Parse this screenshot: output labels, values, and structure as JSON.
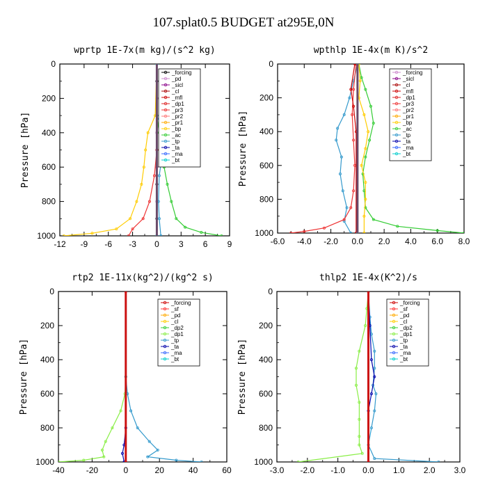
{
  "figure_title": "107.splat0.5  BUDGET at295E,0N",
  "chart_data": [
    {
      "type": "line",
      "title": "wprtp  1E-7x(m kg)/(s^2 kg)",
      "ylabel": "Pressure [hPa]",
      "xlim": [
        -12,
        9
      ],
      "ylim": [
        1000,
        0
      ],
      "xticks": [
        "-12",
        "-9",
        "-6",
        "-3",
        "0",
        "3",
        "6",
        "9"
      ],
      "xtick_values": [
        -12,
        -9,
        -6,
        -3,
        0,
        3,
        6,
        9
      ],
      "yticks": [
        "0",
        "200",
        "400",
        "600",
        "800",
        "1000"
      ],
      "ytick_values": [
        0,
        200,
        400,
        600,
        800,
        1000
      ],
      "legend": [
        "_forcing",
        "_pd",
        "_sicl",
        "_cl",
        "_mfl",
        "_dp1",
        "_pr3",
        "_pr2",
        "_pr1",
        "_bp",
        "_ac",
        "_tp",
        "_ta",
        "_ma",
        "_bt"
      ],
      "legend_colors": [
        "#000000",
        "#cc88cc",
        "#880088",
        "#aa0000",
        "#cc0000",
        "#dd2222",
        "#ee3333",
        "#ff7777",
        "#ffaa00",
        "#ffcc00",
        "#33cc33",
        "#3399cc",
        "#0000aa",
        "#3366ff",
        "#00cccc"
      ],
      "series": [
        {
          "name": "_forcing",
          "color": "#000000",
          "points": [
            [
              0,
              0
            ],
            [
              0,
              100
            ],
            [
              0,
              200
            ],
            [
              0,
              300
            ],
            [
              0,
              400
            ],
            [
              0,
              500
            ],
            [
              0,
              600
            ],
            [
              0,
              700
            ],
            [
              0,
              800
            ],
            [
              0,
              900
            ],
            [
              0,
              1000
            ]
          ]
        },
        {
          "name": "_pd",
          "color": "#cc88cc",
          "points": [
            [
              0,
              0
            ],
            [
              0,
              200
            ],
            [
              0,
              400
            ],
            [
              0,
              600
            ],
            [
              0,
              800
            ],
            [
              0,
              1000
            ]
          ]
        },
        {
          "name": "_ac",
          "color": "#33cc33",
          "points": [
            [
              0,
              0
            ],
            [
              0,
              300
            ],
            [
              0.3,
              400
            ],
            [
              0.6,
              500
            ],
            [
              0.9,
              600
            ],
            [
              1.3,
              700
            ],
            [
              1.8,
              800
            ],
            [
              2.4,
              900
            ],
            [
              3.5,
              950
            ],
            [
              5.5,
              980
            ],
            [
              8,
              1000
            ]
          ]
        },
        {
          "name": "_tp",
          "color": "#3399cc",
          "points": [
            [
              0,
              0
            ],
            [
              0,
              300
            ],
            [
              0.7,
              380
            ],
            [
              0.8,
              450
            ],
            [
              0.6,
              550
            ],
            [
              0.3,
              650
            ],
            [
              0.2,
              800
            ],
            [
              0.3,
              900
            ],
            [
              0.5,
              1000
            ]
          ]
        },
        {
          "name": "_pr1",
          "color": "#ffcc00",
          "points": [
            [
              0,
              0
            ],
            [
              -0.2,
              300
            ],
            [
              -1.1,
              400
            ],
            [
              -1.4,
              500
            ],
            [
              -1.6,
              600
            ],
            [
              -1.9,
              700
            ],
            [
              -2.5,
              800
            ],
            [
              -3.3,
              900
            ],
            [
              -5,
              960
            ],
            [
              -8,
              985
            ],
            [
              -11.5,
              1000
            ]
          ]
        },
        {
          "name": "_pr3",
          "color": "#ee3333",
          "points": [
            [
              0,
              0
            ],
            [
              0,
              500
            ],
            [
              -0.3,
              650
            ],
            [
              -0.9,
              800
            ],
            [
              -1.7,
              900
            ],
            [
              -3,
              960
            ],
            [
              -3.5,
              1000
            ]
          ]
        },
        {
          "name": "_ma",
          "color": "#3366ff",
          "points": [
            [
              0,
              0
            ],
            [
              0,
              1000
            ]
          ]
        },
        {
          "name": "_bt",
          "color": "#00cccc",
          "points": [
            [
              0,
              0
            ],
            [
              0,
              1000
            ]
          ]
        }
      ]
    },
    {
      "type": "line",
      "title": "wpthlp  1E-4x(m K)/s^2",
      "ylabel": "Pressure [hPa]",
      "xlim": [
        -6,
        8
      ],
      "ylim": [
        1000,
        0
      ],
      "xticks": [
        "-6.0",
        "-4.0",
        "-2.0",
        "0.0",
        "2.0",
        "4.0",
        "6.0",
        "8.0"
      ],
      "xtick_values": [
        -6,
        -4,
        -2,
        0,
        2,
        4,
        6,
        8
      ],
      "yticks": [
        "0",
        "200",
        "400",
        "600",
        "800",
        "1000"
      ],
      "ytick_values": [
        0,
        200,
        400,
        600,
        800,
        1000
      ],
      "legend": [
        "_forcing",
        "_sicl",
        "_cl",
        "_mfl",
        "_dp1",
        "_pr3",
        "_pr2",
        "_pr1",
        "_bp",
        "_ac",
        "_tp",
        "_ta",
        "_ma",
        "_bt"
      ],
      "legend_colors": [
        "#cc88cc",
        "#880088",
        "#aa0000",
        "#cc0000",
        "#dd2222",
        "#ee3333",
        "#ff7777",
        "#ffaa00",
        "#ffcc00",
        "#33cc33",
        "#3399cc",
        "#0000aa",
        "#3366ff",
        "#00cccc"
      ],
      "series": [
        {
          "name": "_forcing",
          "color": "#cc88cc",
          "points": [
            [
              0,
              0
            ],
            [
              0,
              1000
            ]
          ]
        },
        {
          "name": "_ac",
          "color": "#33cc33",
          "points": [
            [
              0.1,
              0
            ],
            [
              0.3,
              80
            ],
            [
              0.6,
              150
            ],
            [
              1,
              250
            ],
            [
              1.2,
              350
            ],
            [
              0.9,
              450
            ],
            [
              0.6,
              550
            ],
            [
              0.4,
              650
            ],
            [
              0.5,
              750
            ],
            [
              0.6,
              850
            ],
            [
              1.2,
              920
            ],
            [
              3,
              960
            ],
            [
              6,
              985
            ],
            [
              8,
              1000
            ]
          ]
        },
        {
          "name": "_tp",
          "color": "#3399cc",
          "points": [
            [
              0,
              0
            ],
            [
              -0.3,
              100
            ],
            [
              -0.6,
              200
            ],
            [
              -1,
              300
            ],
            [
              -1.5,
              380
            ],
            [
              -1.6,
              450
            ],
            [
              -1.2,
              550
            ],
            [
              -1.3,
              650
            ],
            [
              -1.1,
              750
            ],
            [
              -0.8,
              850
            ],
            [
              -1,
              930
            ],
            [
              -0.5,
              1000
            ]
          ]
        },
        {
          "name": "_pr1",
          "color": "#ffcc00",
          "points": [
            [
              0.1,
              0
            ],
            [
              0.2,
              100
            ],
            [
              0.1,
              200
            ],
            [
              0.5,
              300
            ],
            [
              0.8,
              400
            ],
            [
              0.6,
              500
            ],
            [
              0.3,
              600
            ],
            [
              0.6,
              700
            ],
            [
              0.6,
              800
            ],
            [
              0.5,
              900
            ],
            [
              0.5,
              1000
            ]
          ]
        },
        {
          "name": "_pr3",
          "color": "#ee3333",
          "points": [
            [
              -0.1,
              0
            ],
            [
              -0.3,
              150
            ],
            [
              -0.4,
              300
            ],
            [
              -0.3,
              450
            ],
            [
              -0.2,
              600
            ],
            [
              -0.3,
              750
            ],
            [
              -0.5,
              850
            ],
            [
              -1,
              920
            ],
            [
              -2.5,
              970
            ],
            [
              -4,
              990
            ],
            [
              -5,
              1000
            ]
          ]
        },
        {
          "name": "_mfl",
          "color": "#cc0000",
          "points": [
            [
              -0.2,
              0
            ],
            [
              -0.5,
              150
            ],
            [
              -0.3,
              250
            ],
            [
              -0.1,
              400
            ],
            [
              -0.1,
              1000
            ]
          ]
        },
        {
          "name": "_bt",
          "color": "#00cccc",
          "points": [
            [
              0,
              0
            ],
            [
              0,
              1000
            ]
          ]
        }
      ]
    },
    {
      "type": "line",
      "title": "rtp2  1E-11x(kg^2)/(kg^2 s)",
      "ylabel": "Pressure [hPa]",
      "xlim": [
        -40,
        60
      ],
      "ylim": [
        1000,
        0
      ],
      "xticks": [
        "-40",
        "-20",
        "0",
        "20",
        "40",
        "60"
      ],
      "xtick_values": [
        -40,
        -20,
        0,
        20,
        40,
        60
      ],
      "yticks": [
        "0",
        "200",
        "400",
        "600",
        "800",
        "1000"
      ],
      "ytick_values": [
        0,
        200,
        400,
        600,
        800,
        1000
      ],
      "legend": [
        "_forcing",
        "_sf",
        "_pd",
        "_cl",
        "_dp2",
        "_dp1",
        "_tp",
        "_ta",
        "_ma",
        "_bt"
      ],
      "legend_colors": [
        "#cc0000",
        "#ff3333",
        "#ffaa00",
        "#ffcc00",
        "#33cc33",
        "#88ee44",
        "#3399cc",
        "#0000aa",
        "#3366ff",
        "#00cccc"
      ],
      "series": [
        {
          "name": "_dp1",
          "color": "#88ee44",
          "points": [
            [
              0,
              0
            ],
            [
              0,
              500
            ],
            [
              -0.5,
              600
            ],
            [
              -3,
              700
            ],
            [
              -8,
              800
            ],
            [
              -12,
              880
            ],
            [
              -14,
              930
            ],
            [
              -13,
              970
            ],
            [
              -25,
              990
            ],
            [
              -40,
              1000
            ]
          ]
        },
        {
          "name": "_tp",
          "color": "#3399cc",
          "points": [
            [
              0,
              0
            ],
            [
              0,
              500
            ],
            [
              1,
              600
            ],
            [
              3,
              700
            ],
            [
              7,
              800
            ],
            [
              14,
              880
            ],
            [
              19,
              930
            ],
            [
              13,
              970
            ],
            [
              30,
              990
            ],
            [
              45,
              1000
            ]
          ]
        },
        {
          "name": "_ta",
          "color": "#0000aa",
          "points": [
            [
              0,
              0
            ],
            [
              0,
              800
            ],
            [
              -1,
              900
            ],
            [
              -2,
              950
            ],
            [
              -1,
              1000
            ]
          ]
        },
        {
          "name": "_forcing",
          "color": "#cc0000",
          "points": [
            [
              0,
              0
            ],
            [
              0,
              1000
            ]
          ]
        },
        {
          "name": "_sf",
          "color": "#ff3333",
          "points": [
            [
              0,
              0
            ],
            [
              0,
              1000
            ]
          ]
        }
      ]
    },
    {
      "type": "line",
      "title": "thlp2  1E-4x(K^2)/s",
      "ylabel": "Pressure [hPa]",
      "xlim": [
        -3,
        3
      ],
      "ylim": [
        1000,
        0
      ],
      "xticks": [
        "-3.0",
        "-2.0",
        "-1.0",
        "0.0",
        "1.0",
        "2.0",
        "3.0"
      ],
      "xtick_values": [
        -3,
        -2,
        -1,
        0,
        1,
        2,
        3
      ],
      "yticks": [
        "0",
        "200",
        "400",
        "600",
        "800",
        "1000"
      ],
      "ytick_values": [
        0,
        200,
        400,
        600,
        800,
        1000
      ],
      "legend": [
        "_forcing",
        "_sf",
        "_pd",
        "_cl",
        "_dp2",
        "_dp1",
        "_tp",
        "_ta",
        "_ma",
        "_bt"
      ],
      "legend_colors": [
        "#cc0000",
        "#ff3333",
        "#ffaa00",
        "#ffcc00",
        "#33cc33",
        "#88ee44",
        "#3399cc",
        "#0000aa",
        "#3366ff",
        "#00cccc"
      ],
      "series": [
        {
          "name": "_dp1",
          "color": "#88ee44",
          "points": [
            [
              0,
              0
            ],
            [
              -0.05,
              100
            ],
            [
              -0.1,
              200
            ],
            [
              -0.3,
              350
            ],
            [
              -0.4,
              450
            ],
            [
              -0.4,
              550
            ],
            [
              -0.3,
              650
            ],
            [
              -0.3,
              750
            ],
            [
              -0.3,
              850
            ],
            [
              -0.3,
              900
            ],
            [
              -0.2,
              950
            ],
            [
              -2.3,
              1000
            ]
          ]
        },
        {
          "name": "_tp",
          "color": "#3399cc",
          "points": [
            [
              0,
              0
            ],
            [
              0.05,
              150
            ],
            [
              0.1,
              250
            ],
            [
              0.2,
              350
            ],
            [
              0.2,
              450
            ],
            [
              0.15,
              550
            ],
            [
              0.25,
              600
            ],
            [
              0.2,
              700
            ],
            [
              0.1,
              800
            ],
            [
              0,
              900
            ],
            [
              0.2,
              980
            ],
            [
              2.3,
              1000
            ]
          ]
        },
        {
          "name": "_ta",
          "color": "#0000aa",
          "points": [
            [
              0,
              0
            ],
            [
              0.05,
              200
            ],
            [
              0.1,
              400
            ],
            [
              0.2,
              500
            ],
            [
              0.1,
              600
            ],
            [
              0,
              700
            ],
            [
              0,
              1000
            ]
          ]
        },
        {
          "name": "_forcing",
          "color": "#cc0000",
          "points": [
            [
              0,
              0
            ],
            [
              0,
              1000
            ]
          ]
        },
        {
          "name": "_sf",
          "color": "#ff3333",
          "points": [
            [
              0,
              0
            ],
            [
              0,
              1000
            ]
          ]
        }
      ]
    }
  ]
}
